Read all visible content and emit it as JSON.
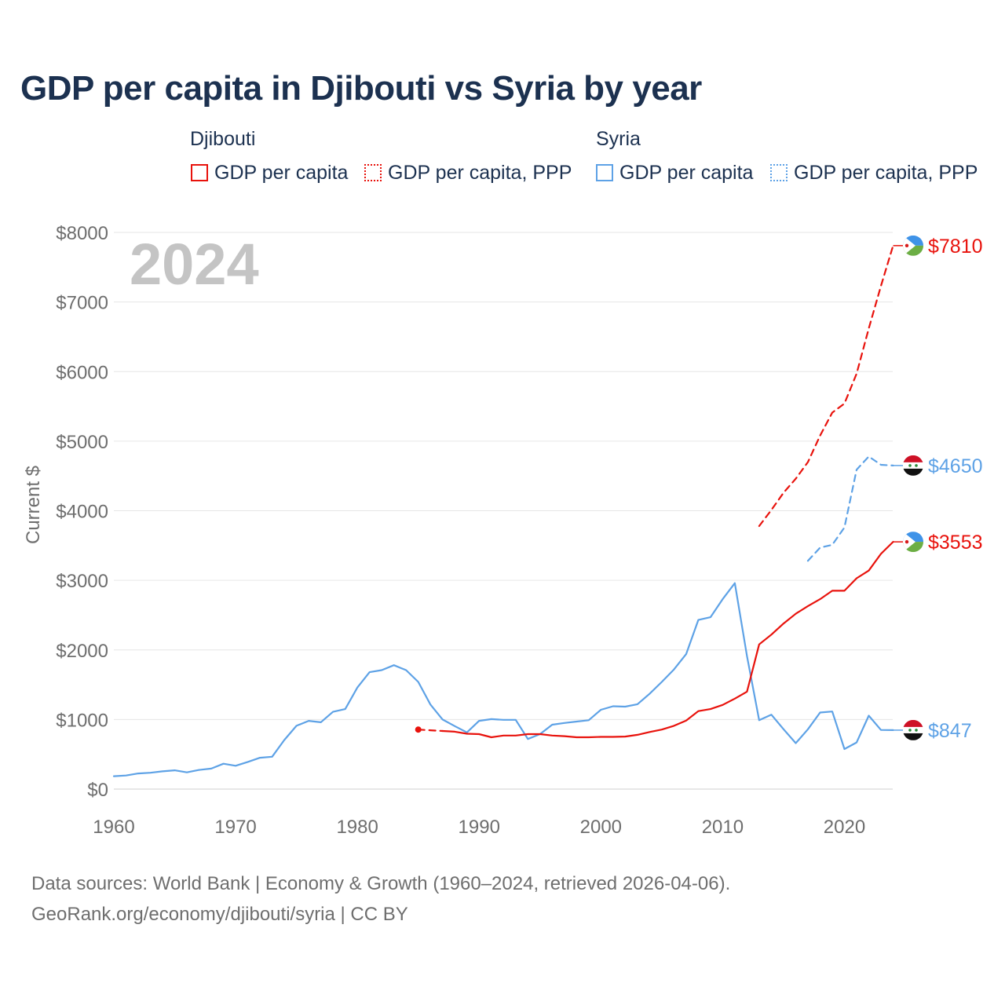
{
  "title": "GDP per capita in Djibouti vs Syria by year",
  "legend": {
    "groups": [
      {
        "name": "Djibouti",
        "color": "#e8120c",
        "items": [
          {
            "label": "GDP per capita",
            "style": "solid"
          },
          {
            "label": "GDP per capita, PPP",
            "style": "dotted"
          }
        ]
      },
      {
        "name": "Syria",
        "color": "#5ea2e6",
        "items": [
          {
            "label": "GDP per capita",
            "style": "solid"
          },
          {
            "label": "GDP per capita, PPP",
            "style": "dotted"
          }
        ]
      }
    ]
  },
  "chart_data": {
    "type": "line",
    "watermark_year": "2024",
    "ylabel": "Current $",
    "xlabel": "",
    "xlim": [
      1960,
      2025
    ],
    "ylim": [
      0,
      8000
    ],
    "x_ticks": [
      1960,
      1970,
      1980,
      1990,
      2000,
      2010,
      2020
    ],
    "y_ticks": [
      {
        "value": 0,
        "label": "$0"
      },
      {
        "value": 1000,
        "label": "$1000"
      },
      {
        "value": 2000,
        "label": "$2000"
      },
      {
        "value": 3000,
        "label": "$3000"
      },
      {
        "value": 4000,
        "label": "$4000"
      },
      {
        "value": 5000,
        "label": "$5000"
      },
      {
        "value": 6000,
        "label": "$6000"
      },
      {
        "value": 7000,
        "label": "$7000"
      },
      {
        "value": 8000,
        "label": "$8000"
      }
    ],
    "grid": true,
    "series": [
      {
        "name": "Syria GDP per capita",
        "country": "Syria",
        "color": "#5ea2e6",
        "dash": "solid",
        "end_label": "$847",
        "x": [
          1960,
          1961,
          1962,
          1963,
          1964,
          1965,
          1966,
          1967,
          1968,
          1969,
          1970,
          1971,
          1972,
          1973,
          1974,
          1975,
          1976,
          1977,
          1978,
          1979,
          1980,
          1981,
          1982,
          1983,
          1984,
          1985,
          1986,
          1987,
          1988,
          1989,
          1990,
          1991,
          1992,
          1993,
          1994,
          1995,
          1996,
          1997,
          1998,
          1999,
          2000,
          2001,
          2002,
          2003,
          2004,
          2005,
          2006,
          2007,
          2008,
          2009,
          2010,
          2011,
          2012,
          2013,
          2014,
          2015,
          2016,
          2017,
          2018,
          2019,
          2020,
          2021,
          2022,
          2023,
          2024
        ],
        "y": [
          185,
          195,
          225,
          235,
          255,
          270,
          240,
          275,
          295,
          365,
          335,
          390,
          450,
          465,
          705,
          910,
          980,
          960,
          1110,
          1150,
          1460,
          1680,
          1710,
          1780,
          1710,
          1540,
          1215,
          1000,
          905,
          815,
          980,
          1005,
          995,
          995,
          720,
          790,
          925,
          950,
          970,
          990,
          1140,
          1190,
          1185,
          1220,
          1370,
          1540,
          1720,
          1940,
          2430,
          2470,
          2730,
          2960,
          1910,
          990,
          1070,
          860,
          660,
          860,
          1100,
          1115,
          575,
          670,
          1055,
          850,
          847
        ]
      },
      {
        "name": "Syria GDP per capita, PPP",
        "country": "Syria",
        "color": "#5ea2e6",
        "dash": "dashed",
        "end_label": "$4650",
        "x": [
          2017,
          2018,
          2019,
          2020,
          2021,
          2022,
          2023,
          2024
        ],
        "y": [
          3280,
          3470,
          3510,
          3760,
          4590,
          4780,
          4660,
          4650
        ]
      },
      {
        "name": "Djibouti GDP per capita",
        "country": "Djibouti",
        "color": "#e8120c",
        "dash": "solid",
        "end_label": "$3553",
        "x": [
          1987,
          1988,
          1989,
          1990,
          1991,
          1992,
          1993,
          1994,
          1995,
          1996,
          1997,
          1998,
          1999,
          2000,
          2001,
          2002,
          2003,
          2004,
          2005,
          2006,
          2007,
          2008,
          2009,
          2010,
          2011,
          2012,
          2013,
          2014,
          2015,
          2016,
          2017,
          2018,
          2019,
          2020,
          2021,
          2022,
          2023,
          2024
        ],
        "y": [
          835,
          825,
          795,
          790,
          745,
          770,
          770,
          790,
          790,
          770,
          760,
          745,
          745,
          750,
          750,
          755,
          780,
          820,
          855,
          910,
          985,
          1120,
          1150,
          1210,
          1300,
          1400,
          2080,
          2220,
          2380,
          2520,
          2630,
          2730,
          2850,
          2850,
          3030,
          3140,
          3380,
          3553
        ]
      },
      {
        "name": "Djibouti GDP per capita (early, dashed)",
        "country": "Djibouti",
        "color": "#e8120c",
        "dash": "dashed",
        "start_marker": true,
        "x": [
          1985,
          1986,
          1987
        ],
        "y": [
          855,
          845,
          835
        ]
      },
      {
        "name": "Djibouti GDP per capita, PPP",
        "country": "Djibouti",
        "color": "#e8120c",
        "dash": "dashed",
        "end_label": "$7810",
        "x": [
          2013,
          2014,
          2015,
          2016,
          2017,
          2018,
          2019,
          2020,
          2021,
          2022,
          2023,
          2024
        ],
        "y": [
          3780,
          4010,
          4260,
          4460,
          4700,
          5080,
          5410,
          5540,
          5970,
          6620,
          7230,
          7810
        ]
      }
    ]
  },
  "footer": {
    "line1": "Data sources: World Bank | Economy & Growth (1960–2024, retrieved 2026-04-06).",
    "line2": "GeoRank.org/economy/djibouti/syria | CC BY"
  }
}
